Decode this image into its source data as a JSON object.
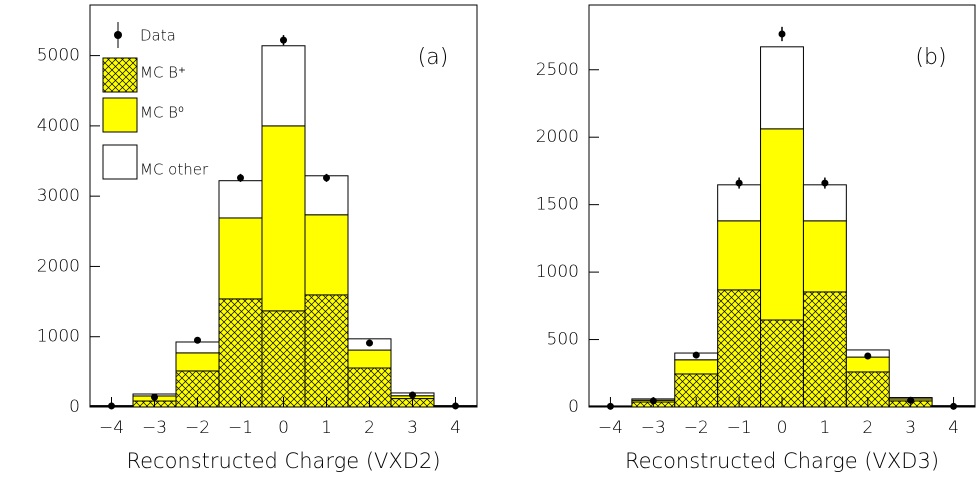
{
  "chart_data": [
    {
      "type": "stacked-histogram",
      "panel_label": "(a)",
      "xlabel": "Reconstructed Charge (VXD2)",
      "bins": [
        -4.5,
        -3.5,
        -2.5,
        -1.5,
        -0.5,
        0.5,
        1.5,
        2.5,
        3.5,
        4.5
      ],
      "xlim": [
        -4.5,
        4.5
      ],
      "xticks": [
        {
          "value": -4,
          "label": "−4"
        },
        {
          "value": -3,
          "label": "−3"
        },
        {
          "value": -2,
          "label": "−2"
        },
        {
          "value": -1,
          "label": "−1"
        },
        0,
        1,
        2,
        3,
        4
      ],
      "ylim": [
        0,
        5720
      ],
      "yticks": [
        0,
        1000,
        2000,
        3000,
        4000,
        5000
      ],
      "legend": true,
      "series": [
        {
          "name": "MC B⁺",
          "color": "#ffff00",
          "hatch": true,
          "values": [
            10,
            85,
            513,
            1538,
            1368,
            1595,
            555,
            120,
            10
          ]
        },
        {
          "name": "MC B⁰",
          "color": "#ffff00",
          "hatch": false,
          "values": [
            5,
            72,
            257,
            1152,
            2632,
            1140,
            255,
            40,
            5
          ]
        },
        {
          "name": "MC other",
          "color": "#ffffff",
          "hatch": false,
          "values": [
            5,
            28,
            155,
            530,
            1140,
            555,
            160,
            40,
            5
          ]
        }
      ],
      "data": {
        "name": "Data",
        "color": "#000000",
        "values": [
          15,
          140,
          950,
          3260,
          5220,
          3260,
          910,
          170,
          15
        ],
        "errors": [
          4,
          12,
          31,
          57,
          72,
          57,
          30,
          13,
          4
        ]
      }
    },
    {
      "type": "stacked-histogram",
      "panel_label": "(b)",
      "xlabel": "Reconstructed Charge (VXD3)",
      "bins": [
        -4.5,
        -3.5,
        -2.5,
        -1.5,
        -0.5,
        0.5,
        1.5,
        2.5,
        3.5,
        4.5
      ],
      "xlim": [
        -4.5,
        4.5
      ],
      "xticks": [
        {
          "value": -4,
          "label": "−4"
        },
        {
          "value": -3,
          "label": "−3"
        },
        {
          "value": -2,
          "label": "−2"
        },
        {
          "value": -1,
          "label": "−1"
        },
        0,
        1,
        2,
        3,
        4
      ],
      "ylim": [
        0,
        2980
      ],
      "yticks": [
        0,
        500,
        1000,
        1500,
        2000,
        2500
      ],
      "legend": false,
      "series": [
        {
          "color": "#ffff00",
          "hatch": true,
          "values": [
            5,
            37,
            245,
            868,
            645,
            853,
            260,
            45,
            5
          ]
        },
        {
          "color": "#ffff00",
          "hatch": false,
          "values": [
            2,
            13,
            105,
            512,
            1417,
            527,
            110,
            15,
            3
          ]
        },
        {
          "color": "#ffffff",
          "hatch": false,
          "values": [
            1,
            10,
            50,
            267,
            608,
            267,
            53,
            10,
            2
          ]
        }
      ],
      "data": {
        "color": "#000000",
        "values": [
          5,
          45,
          385,
          1660,
          2765,
          1660,
          378,
          50,
          5
        ],
        "errors": [
          2,
          7,
          20,
          41,
          53,
          41,
          19,
          7,
          2
        ]
      }
    }
  ]
}
